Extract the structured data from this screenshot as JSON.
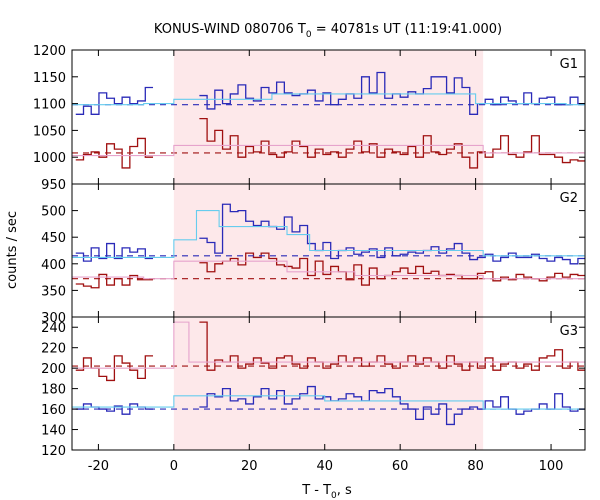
{
  "title": {
    "prefix": "KONUS-WIND 080706 T",
    "sub": "0",
    "suffix": " = 40781s UT (11:19:41.000)"
  },
  "colors": {
    "highlight": "#fde8ea",
    "blue": "#2a2ab8",
    "red": "#a01010",
    "cyan": "#66ccee",
    "pink": "#e6a3cc"
  },
  "chart_data": {
    "type": "line",
    "xlabel": {
      "prefix": "T - T",
      "sub": "0",
      "suffix": ", s"
    },
    "ylabel": "counts / sec",
    "xlim": [
      -27,
      109
    ],
    "xticks": [
      -20,
      0,
      20,
      40,
      60,
      80,
      100
    ],
    "xtick_labels": [
      "-20",
      "0",
      "20",
      "40",
      "60",
      "80",
      "100"
    ],
    "highlight_interval": [
      0,
      82
    ],
    "panels": [
      {
        "name": "G1",
        "ylim": [
          950,
          1200
        ],
        "yticks": [
          950,
          1000,
          1050,
          1100,
          1150,
          1200
        ],
        "ytick_labels": [
          "950",
          "1000",
          "1050",
          "1100",
          "1150",
          "1200"
        ],
        "series": [
          {
            "name": "blue histogram",
            "color": "blue",
            "x_start": -26,
            "step": 2.048,
            "values": [
              1080,
              1095,
              1080,
              1120,
              1110,
              1100,
              1112,
              1100,
              1105,
              1130,
              null,
              null,
              null,
              null,
              null,
              null,
              1115,
              1090,
              1125,
              1100,
              1118,
              1135,
              1110,
              1105,
              1130,
              1120,
              1140,
              1120,
              1115,
              1118,
              1125,
              1105,
              1120,
              1098,
              1108,
              1118,
              1110,
              1150,
              1120,
              1158,
              1110,
              1118,
              1112,
              1122,
              1118,
              1128,
              1150,
              1150,
              1120,
              1148,
              1130,
              1080,
              1100,
              1108,
              1098,
              1112,
              1105,
              1100,
              1120,
              1100,
              1110,
              1112,
              1098,
              1098,
              1112,
              1100,
              1098
            ]
          },
          {
            "name": "red histogram",
            "color": "red",
            "x_start": -26,
            "step": 2.048,
            "values": [
              995,
              1005,
              1010,
              1000,
              1025,
              1015,
              980,
              1020,
              1035,
              1000,
              null,
              null,
              null,
              null,
              null,
              null,
              1072,
              1030,
              1050,
              1015,
              1040,
              1000,
              1020,
              1010,
              1030,
              1005,
              1000,
              1010,
              1030,
              1020,
              1000,
              1015,
              1005,
              1010,
              1000,
              1015,
              1030,
              1010,
              1025,
              1000,
              1015,
              1010,
              1005,
              1020,
              1000,
              1040,
              1010,
              1005,
              1015,
              1025,
              1000,
              980,
              1010,
              1000,
              1015,
              1040,
              1005,
              1000,
              1010,
              1040,
              1005,
              1005,
              1000,
              990,
              995,
              993,
              995
            ]
          },
          {
            "name": "blue mean",
            "color": "blue",
            "style": "dashed",
            "x": [
              -27,
              109
            ],
            "y": [
              1098,
              1098
            ]
          },
          {
            "name": "red mean",
            "color": "red",
            "style": "dashed",
            "x": [
              -27,
              109
            ],
            "y": [
              1008,
              1008
            ]
          },
          {
            "name": "blue fit",
            "color": "cyan",
            "style": "solid",
            "x": [
              -27,
              -8,
              -8,
              0,
              0,
              26,
              26,
              80,
              80,
              104,
              104,
              109
            ],
            "y": [
              1098,
              1098,
              1100,
              1100,
              1108,
              1108,
              1118,
              1118,
              1100,
              1100,
              1098,
              1098
            ]
          },
          {
            "name": "red fit",
            "color": "pink",
            "style": "solid",
            "x": [
              -27,
              0,
              0,
              82,
              82,
              109
            ],
            "y": [
              1003,
              1003,
              1022,
              1022,
              1008,
              1008
            ]
          }
        ]
      },
      {
        "name": "G2",
        "ylim": [
          300,
          550
        ],
        "yticks": [
          300,
          350,
          400,
          450,
          500
        ],
        "ytick_labels": [
          "300",
          "350",
          "400",
          "450",
          "500"
        ],
        "series": [
          {
            "name": "blue histogram",
            "color": "blue",
            "x_start": -26,
            "step": 2.048,
            "values": [
              420,
              405,
              430,
              410,
              438,
              410,
              430,
              422,
              428,
              410,
              null,
              null,
              null,
              null,
              null,
              null,
              448,
              440,
              420,
              512,
              498,
              500,
              480,
              472,
              480,
              470,
              465,
              488,
              460,
              472,
              438,
              425,
              440,
              410,
              425,
              430,
              418,
              422,
              428,
              412,
              430,
              415,
              418,
              422,
              420,
              425,
              432,
              420,
              428,
              438,
              420,
              408,
              412,
              418,
              405,
              412,
              420,
              412,
              412,
              418,
              410,
              405,
              412,
              408,
              400,
              410,
              398
            ]
          },
          {
            "name": "red histogram",
            "color": "red",
            "x_start": -26,
            "step": 2.048,
            "values": [
              362,
              358,
              355,
              380,
              360,
              372,
              360,
              378,
              370,
              370,
              null,
              null,
              null,
              null,
              null,
              null,
              402,
              385,
              400,
              405,
              410,
              398,
              420,
              412,
              420,
              410,
              398,
              395,
              392,
              410,
              378,
              405,
              380,
              395,
              385,
              370,
              398,
              360,
              392,
              372,
              378,
              385,
              392,
              382,
              395,
              382,
              386,
              378,
              380,
              378,
              372,
              372,
              382,
              385,
              368,
              375,
              370,
              380,
              375,
              372,
              368,
              375,
              382,
              375,
              380,
              378,
              372
            ]
          },
          {
            "name": "blue mean",
            "color": "blue",
            "style": "dashed",
            "x": [
              -27,
              109
            ],
            "y": [
              415,
              415
            ]
          },
          {
            "name": "red mean",
            "color": "red",
            "style": "dashed",
            "x": [
              -27,
              109
            ],
            "y": [
              372,
              372
            ]
          },
          {
            "name": "blue fit",
            "color": "cyan",
            "style": "solid",
            "x": [
              -27,
              0,
              0,
              6,
              6,
              12,
              12,
              30,
              30,
              36,
              36,
              82,
              82,
              109
            ],
            "y": [
              412,
              412,
              445,
              445,
              500,
              500,
              470,
              470,
              455,
              455,
              425,
              425,
              415,
              415
            ]
          },
          {
            "name": "red fit",
            "color": "pink",
            "style": "solid",
            "x": [
              -27,
              -8,
              -8,
              0,
              0,
              30,
              30,
              48,
              48,
              82,
              82,
              109
            ],
            "y": [
              375,
              375,
              372,
              372,
              405,
              405,
              385,
              385,
              378,
              378,
              372,
              372
            ]
          }
        ]
      },
      {
        "name": "G3",
        "ylim": [
          120,
          250
        ],
        "yticks": [
          120,
          140,
          160,
          180,
          200,
          220,
          240
        ],
        "ytick_labels": [
          "120",
          "140",
          "160",
          "180",
          "200",
          "220",
          "240"
        ],
        "series": [
          {
            "name": "blue histogram",
            "color": "blue",
            "x_start": -26,
            "step": 2.048,
            "values": [
              160,
              165,
              162,
              160,
              158,
              163,
              155,
              165,
              162,
              160,
              null,
              null,
              null,
              null,
              null,
              null,
              162,
              175,
              172,
              180,
              168,
              170,
              165,
              172,
              180,
              170,
              178,
              165,
              170,
              175,
              182,
              170,
              172,
              168,
              170,
              175,
              172,
              168,
              178,
              176,
              180,
              172,
              165,
              160,
              150,
              162,
              155,
              165,
              145,
              155,
              160,
              162,
              160,
              168,
              162,
              172,
              160,
              155,
              158,
              160,
              165,
              160,
              175,
              162,
              158,
              160,
              162
            ]
          },
          {
            "name": "red histogram",
            "color": "red",
            "x_start": -26,
            "step": 2.048,
            "values": [
              198,
              210,
              200,
              192,
              188,
              212,
              205,
              198,
              190,
              212,
              null,
              null,
              null,
              null,
              null,
              null,
              245,
              198,
              208,
              206,
              212,
              200,
              204,
              210,
              205,
              200,
              210,
              212,
              204,
              200,
              210,
              206,
              200,
              204,
              212,
              206,
              210,
              202,
              206,
              212,
              204,
              200,
              206,
              212,
              204,
              210,
              206,
              200,
              212,
              204,
              198,
              206,
              200,
              210,
              198,
              204,
              206,
              200,
              204,
              198,
              210,
              212,
              218,
              200,
              206,
              198,
              206
            ]
          },
          {
            "name": "blue mean",
            "color": "blue",
            "style": "dashed",
            "x": [
              -27,
              109
            ],
            "y": [
              160,
              160
            ]
          },
          {
            "name": "red mean",
            "color": "red",
            "style": "dashed",
            "x": [
              -27,
              109
            ],
            "y": [
              202,
              202
            ]
          },
          {
            "name": "blue fit",
            "color": "cyan",
            "style": "solid",
            "x": [
              -27,
              0,
              0,
              40,
              40,
              82,
              82,
              109
            ],
            "y": [
              162,
              162,
              173,
              173,
              168,
              168,
              160,
              160
            ]
          },
          {
            "name": "red fit",
            "color": "pink",
            "style": "solid",
            "x": [
              -27,
              0,
              0,
              4,
              4,
              109
            ],
            "y": [
              200,
              200,
              245,
              245,
              206,
              206
            ]
          }
        ]
      }
    ]
  }
}
